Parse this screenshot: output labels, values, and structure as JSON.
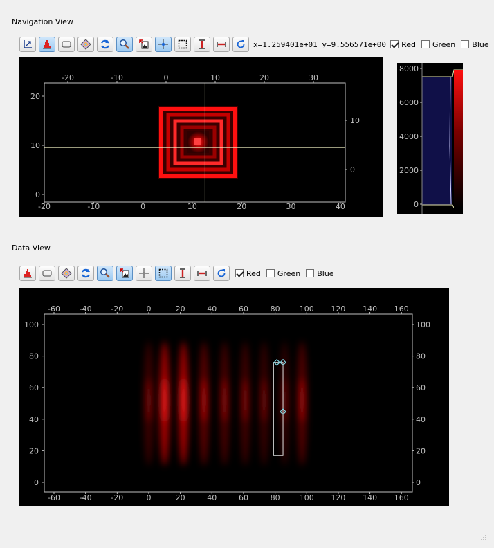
{
  "navigation": {
    "title": "Navigation View",
    "coord_readout": "x=1.259401e+01 y=9.556571e+00",
    "toolbar_icons": [
      "axes-icon",
      "histogram-icon",
      "rectangle-select-icon",
      "colormap-icon",
      "refresh-icon",
      "zoom-icon",
      "image-tool-icon",
      "crosshair-icon",
      "rubberband-icon",
      "vertical-range-icon",
      "horizontal-range-icon",
      "reset-icon"
    ],
    "channels": [
      {
        "label": "Red",
        "checked": true
      },
      {
        "label": "Green",
        "checked": false
      },
      {
        "label": "Blue",
        "checked": false
      }
    ],
    "plot": {
      "x_bottom_ticks": [
        "-20",
        "-10",
        "0",
        "10",
        "20",
        "30",
        "40"
      ],
      "x_top_ticks": [
        "-20",
        "-10",
        "0",
        "10",
        "20",
        "30"
      ],
      "y_left_ticks": [
        "20",
        "10",
        "0"
      ],
      "y_right_ticks": [
        "10",
        "0"
      ],
      "cursor": {
        "x": 12.59,
        "y": 9.56
      }
    },
    "colorbar": {
      "ticks": [
        "8000",
        "6000",
        "4000",
        "2000",
        "0"
      ],
      "accent": "#ff0000"
    }
  },
  "data": {
    "title": "Data View",
    "toolbar_icons": [
      "histogram-icon",
      "rectangle-select-icon",
      "colormap-icon",
      "refresh-icon",
      "zoom-icon",
      "image-tool-icon",
      "crosshair-icon",
      "rubberband-icon",
      "vertical-range-icon",
      "horizontal-range-icon",
      "reset-icon"
    ],
    "channels": [
      {
        "label": "Red",
        "checked": true
      },
      {
        "label": "Green",
        "checked": false
      },
      {
        "label": "Blue",
        "checked": false
      }
    ],
    "plot": {
      "x_ticks": [
        "-60",
        "-40",
        "-20",
        "0",
        "20",
        "40",
        "60",
        "80",
        "100",
        "120",
        "140",
        "160"
      ],
      "y_ticks": [
        "100",
        "80",
        "60",
        "40",
        "20",
        "0"
      ],
      "selection": {
        "x0": 79,
        "x1": 85,
        "y0": 17,
        "y1": 76
      }
    }
  }
}
